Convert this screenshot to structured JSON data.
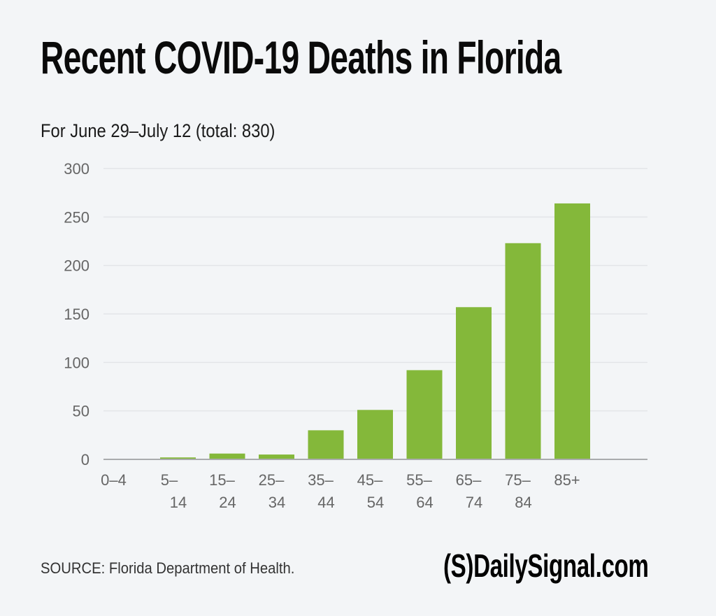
{
  "header": {
    "title": "Recent COVID-19 Deaths in Florida",
    "subtitle": "For June 29–July 12 (total: 830)"
  },
  "footer": {
    "source": "SOURCE: Florida Department of Health.",
    "logo": "(S)DailySignal.com"
  },
  "colors": {
    "bar": "#84b83a",
    "background": "#f3f5f7",
    "grid": "#e3e5e8",
    "axis": "#a9abad"
  },
  "chart_data": {
    "type": "bar",
    "title": "Recent COVID-19 Deaths in Florida",
    "subtitle": "For June 29–July 12 (total: 830)",
    "xlabel": "",
    "ylabel": "",
    "categories": [
      [
        "0–4"
      ],
      [
        "5–",
        "14"
      ],
      [
        "15–",
        "24"
      ],
      [
        "25–",
        "34"
      ],
      [
        "35–",
        "44"
      ],
      [
        "45–",
        "54"
      ],
      [
        "55–",
        "64"
      ],
      [
        "65–",
        "74"
      ],
      [
        "75–",
        "84"
      ],
      [
        "85+"
      ]
    ],
    "values": [
      0,
      2,
      6,
      5,
      30,
      51,
      92,
      157,
      223,
      264
    ],
    "ylim": [
      0,
      300
    ],
    "yticks": [
      0,
      50,
      100,
      150,
      200,
      250,
      300
    ],
    "grid": true,
    "legend": "none"
  }
}
